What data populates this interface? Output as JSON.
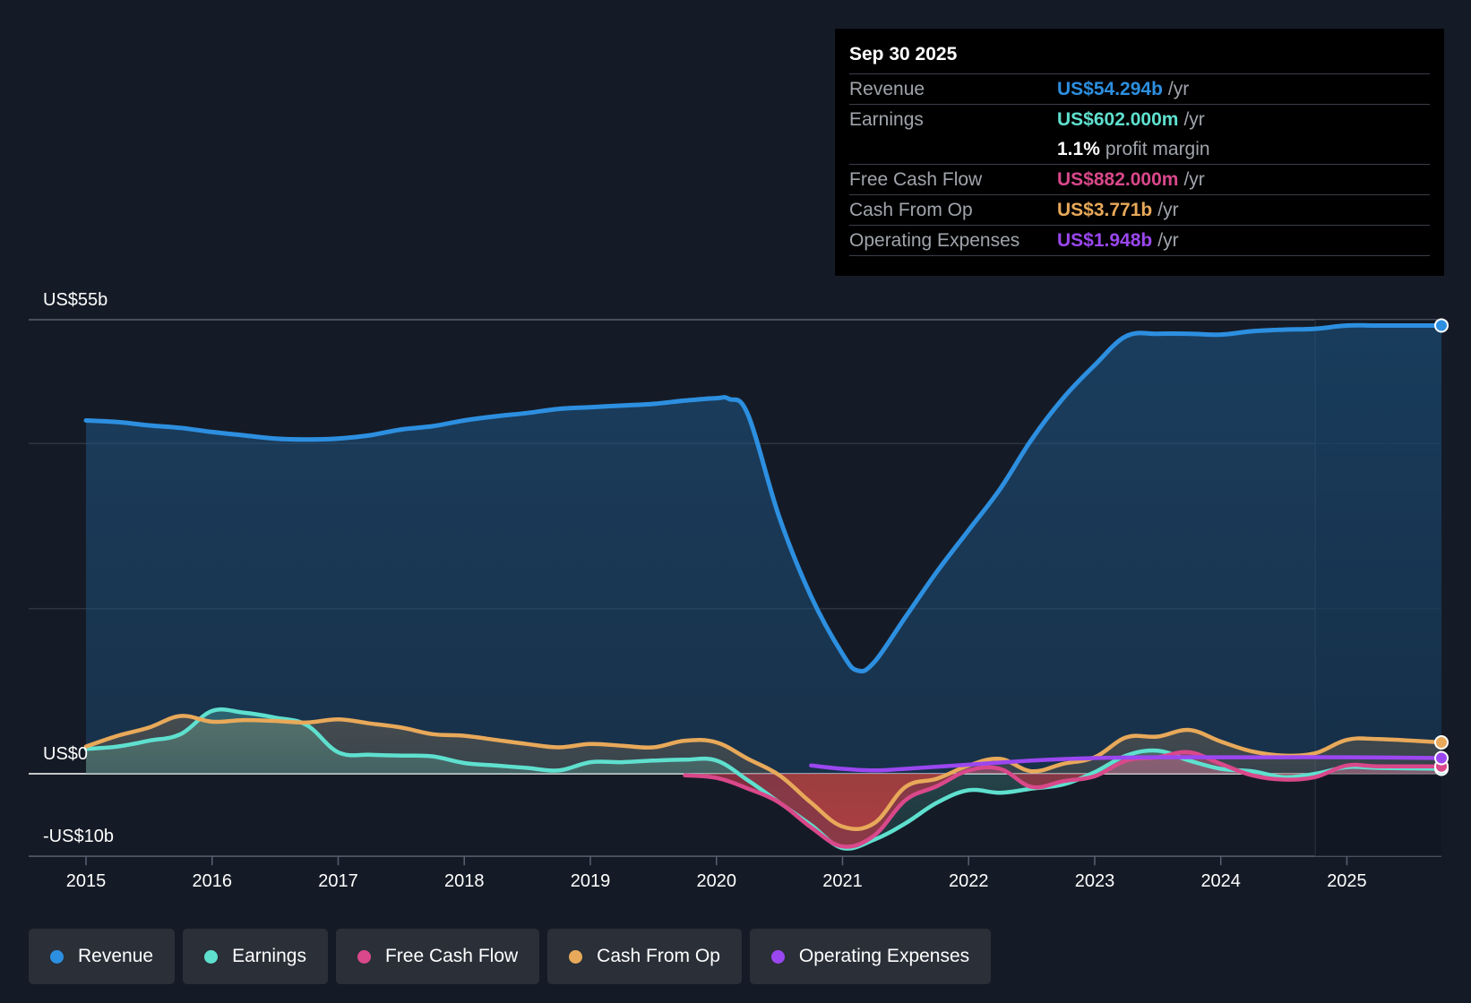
{
  "tooltip": {
    "date": "Sep 30 2025",
    "rows": [
      {
        "label": "Revenue",
        "value": "US$54.294b",
        "unit": "/yr",
        "color": "#2d8fe0"
      },
      {
        "label": "Earnings",
        "value": "US$602.000m",
        "unit": "/yr",
        "color": "#5fe0cf"
      },
      {
        "label": "",
        "value": "1.1%",
        "unit": "profit margin",
        "color": "#ffffff"
      },
      {
        "label": "Free Cash Flow",
        "value": "US$882.000m",
        "unit": "/yr",
        "color": "#d9488a"
      },
      {
        "label": "Cash From Op",
        "value": "US$3.771b",
        "unit": "/yr",
        "color": "#e8a95a"
      },
      {
        "label": "Operating Expenses",
        "value": "US$1.948b",
        "unit": "/yr",
        "color": "#9b47f0"
      }
    ]
  },
  "legend": [
    {
      "label": "Revenue",
      "color": "#2d8fe0"
    },
    {
      "label": "Earnings",
      "color": "#5fe0cf"
    },
    {
      "label": "Free Cash Flow",
      "color": "#d9488a"
    },
    {
      "label": "Cash From Op",
      "color": "#e8a95a"
    },
    {
      "label": "Operating Expenses",
      "color": "#9b47f0"
    }
  ],
  "chart_data": {
    "type": "area",
    "title": "",
    "xlabel": "",
    "ylabel": "",
    "xlim": [
      2015,
      2025.75
    ],
    "ylim": [
      -10,
      55
    ],
    "y_axis_labels": [
      {
        "value": 55,
        "label": "US$55b"
      },
      {
        "value": 0,
        "label": "US$0"
      },
      {
        "value": -10,
        "label": "-US$10b"
      }
    ],
    "x_ticks": [
      {
        "value": 2015,
        "label": "2015"
      },
      {
        "value": 2016,
        "label": "2016"
      },
      {
        "value": 2017,
        "label": "2017"
      },
      {
        "value": 2018,
        "label": "2018"
      },
      {
        "value": 2019,
        "label": "2019"
      },
      {
        "value": 2020,
        "label": "2020"
      },
      {
        "value": 2021,
        "label": "2021"
      },
      {
        "value": 2022,
        "label": "2022"
      },
      {
        "value": 2023,
        "label": "2023"
      },
      {
        "value": 2024,
        "label": "2024"
      },
      {
        "value": 2025,
        "label": "2025"
      }
    ],
    "gridlines": [
      55,
      40,
      20,
      0,
      -10
    ],
    "forecast_start": 2024.75,
    "series": [
      {
        "name": "Revenue",
        "color": "#2d8fe0",
        "fill": true,
        "points": [
          [
            2015,
            42.8
          ],
          [
            2015.25,
            42.6
          ],
          [
            2015.5,
            42.2
          ],
          [
            2015.75,
            41.9
          ],
          [
            2016,
            41.4
          ],
          [
            2016.25,
            41.0
          ],
          [
            2016.5,
            40.6
          ],
          [
            2016.75,
            40.5
          ],
          [
            2017,
            40.6
          ],
          [
            2017.25,
            41.0
          ],
          [
            2017.5,
            41.7
          ],
          [
            2017.75,
            42.1
          ],
          [
            2018,
            42.8
          ],
          [
            2018.25,
            43.3
          ],
          [
            2018.5,
            43.7
          ],
          [
            2018.75,
            44.2
          ],
          [
            2019,
            44.4
          ],
          [
            2019.25,
            44.6
          ],
          [
            2019.5,
            44.8
          ],
          [
            2019.75,
            45.2
          ],
          [
            2020,
            45.5
          ],
          [
            2020.1,
            45.4
          ],
          [
            2020.25,
            43.5
          ],
          [
            2020.5,
            31.0
          ],
          [
            2020.75,
            21.5
          ],
          [
            2021,
            14.5
          ],
          [
            2021.12,
            12.5
          ],
          [
            2021.25,
            13.5
          ],
          [
            2021.5,
            19.0
          ],
          [
            2021.75,
            24.5
          ],
          [
            2022,
            29.5
          ],
          [
            2022.25,
            34.5
          ],
          [
            2022.5,
            40.5
          ],
          [
            2022.75,
            45.5
          ],
          [
            2023,
            49.5
          ],
          [
            2023.25,
            53.0
          ],
          [
            2023.5,
            53.3
          ],
          [
            2023.75,
            53.3
          ],
          [
            2024,
            53.2
          ],
          [
            2024.25,
            53.6
          ],
          [
            2024.5,
            53.8
          ],
          [
            2024.75,
            53.9
          ],
          [
            2025,
            54.3
          ],
          [
            2025.25,
            54.3
          ],
          [
            2025.75,
            54.3
          ]
        ]
      },
      {
        "name": "Earnings",
        "color": "#5fe0cf",
        "fill": true,
        "points": [
          [
            2015,
            3.0
          ],
          [
            2015.25,
            3.3
          ],
          [
            2015.5,
            4.0
          ],
          [
            2015.75,
            4.8
          ],
          [
            2016,
            7.6
          ],
          [
            2016.25,
            7.4
          ],
          [
            2016.5,
            6.8
          ],
          [
            2016.75,
            5.9
          ],
          [
            2017,
            2.6
          ],
          [
            2017.25,
            2.3
          ],
          [
            2017.5,
            2.2
          ],
          [
            2017.75,
            2.1
          ],
          [
            2018,
            1.3
          ],
          [
            2018.25,
            1.0
          ],
          [
            2018.5,
            0.7
          ],
          [
            2018.75,
            0.4
          ],
          [
            2019,
            1.4
          ],
          [
            2019.25,
            1.4
          ],
          [
            2019.5,
            1.6
          ],
          [
            2019.75,
            1.7
          ],
          [
            2020,
            1.6
          ],
          [
            2020.25,
            -0.8
          ],
          [
            2020.5,
            -3.5
          ],
          [
            2020.75,
            -6.2
          ],
          [
            2021,
            -9.0
          ],
          [
            2021.25,
            -8.0
          ],
          [
            2021.5,
            -6.0
          ],
          [
            2021.75,
            -3.5
          ],
          [
            2022,
            -2.0
          ],
          [
            2022.25,
            -2.3
          ],
          [
            2022.5,
            -1.8
          ],
          [
            2022.75,
            -1.3
          ],
          [
            2023,
            0.2
          ],
          [
            2023.25,
            2.2
          ],
          [
            2023.5,
            2.8
          ],
          [
            2023.75,
            1.6
          ],
          [
            2024,
            0.6
          ],
          [
            2024.25,
            0.3
          ],
          [
            2024.5,
            -0.4
          ],
          [
            2024.75,
            0.0
          ],
          [
            2025,
            0.8
          ],
          [
            2025.25,
            0.7
          ],
          [
            2025.75,
            0.6
          ]
        ]
      },
      {
        "name": "Free Cash Flow",
        "color": "#d9488a",
        "fill": true,
        "points": [
          [
            2019.75,
            -0.2
          ],
          [
            2020,
            -0.5
          ],
          [
            2020.25,
            -1.8
          ],
          [
            2020.5,
            -3.5
          ],
          [
            2020.75,
            -6.5
          ],
          [
            2021,
            -8.8
          ],
          [
            2021.25,
            -7.5
          ],
          [
            2021.5,
            -3.2
          ],
          [
            2021.75,
            -1.5
          ],
          [
            2022,
            0.4
          ],
          [
            2022.25,
            0.6
          ],
          [
            2022.5,
            -1.6
          ],
          [
            2022.75,
            -0.9
          ],
          [
            2023,
            -0.3
          ],
          [
            2023.25,
            1.6
          ],
          [
            2023.5,
            2.0
          ],
          [
            2023.75,
            2.6
          ],
          [
            2024,
            1.2
          ],
          [
            2024.25,
            -0.2
          ],
          [
            2024.5,
            -0.7
          ],
          [
            2024.75,
            -0.4
          ],
          [
            2025,
            1.0
          ],
          [
            2025.25,
            0.9
          ],
          [
            2025.75,
            0.9
          ]
        ]
      },
      {
        "name": "Cash From Op",
        "color": "#e8a95a",
        "fill": true,
        "points": [
          [
            2015,
            3.3
          ],
          [
            2015.25,
            4.6
          ],
          [
            2015.5,
            5.6
          ],
          [
            2015.75,
            7.0
          ],
          [
            2016,
            6.3
          ],
          [
            2016.25,
            6.5
          ],
          [
            2016.5,
            6.4
          ],
          [
            2016.75,
            6.2
          ],
          [
            2017,
            6.6
          ],
          [
            2017.25,
            6.1
          ],
          [
            2017.5,
            5.6
          ],
          [
            2017.75,
            4.8
          ],
          [
            2018,
            4.6
          ],
          [
            2018.25,
            4.1
          ],
          [
            2018.5,
            3.6
          ],
          [
            2018.75,
            3.2
          ],
          [
            2019,
            3.6
          ],
          [
            2019.25,
            3.4
          ],
          [
            2019.5,
            3.2
          ],
          [
            2019.75,
            4.0
          ],
          [
            2020,
            3.8
          ],
          [
            2020.25,
            1.8
          ],
          [
            2020.5,
            -0.2
          ],
          [
            2020.75,
            -3.5
          ],
          [
            2021,
            -6.4
          ],
          [
            2021.25,
            -6.0
          ],
          [
            2021.5,
            -1.6
          ],
          [
            2021.75,
            -0.6
          ],
          [
            2022,
            1.0
          ],
          [
            2022.25,
            1.8
          ],
          [
            2022.5,
            0.3
          ],
          [
            2022.75,
            1.2
          ],
          [
            2023,
            2.0
          ],
          [
            2023.25,
            4.4
          ],
          [
            2023.5,
            4.5
          ],
          [
            2023.75,
            5.3
          ],
          [
            2024,
            3.9
          ],
          [
            2024.25,
            2.7
          ],
          [
            2024.5,
            2.2
          ],
          [
            2024.75,
            2.5
          ],
          [
            2025,
            4.1
          ],
          [
            2025.25,
            4.2
          ],
          [
            2025.75,
            3.8
          ]
        ]
      },
      {
        "name": "Operating Expenses",
        "color": "#9b47f0",
        "fill": false,
        "points": [
          [
            2020.75,
            1.0
          ],
          [
            2021,
            0.6
          ],
          [
            2021.25,
            0.4
          ],
          [
            2021.5,
            0.6
          ],
          [
            2022,
            1.1
          ],
          [
            2022.5,
            1.6
          ],
          [
            2023,
            1.9
          ],
          [
            2023.5,
            2.0
          ],
          [
            2024,
            2.0
          ],
          [
            2024.5,
            2.0
          ],
          [
            2025,
            2.0
          ],
          [
            2025.75,
            1.9
          ]
        ]
      }
    ]
  }
}
